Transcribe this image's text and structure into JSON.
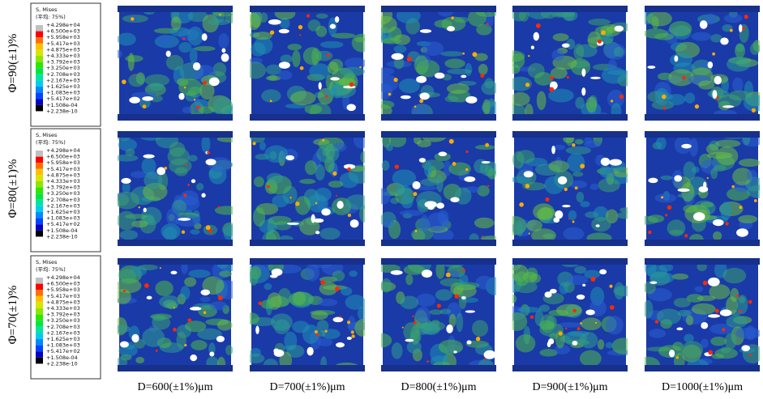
{
  "rows": [
    {
      "label": "Φ=90(±1)%",
      "legend": {
        "title": "S, Mises",
        "subtitle": "(平均: 75%)",
        "values": [
          "+4.298e+04",
          "+6.500e+03",
          "+5.958e+03",
          "+5.417e+03",
          "+4.875e+03",
          "+4.333e+03",
          "+3.792e+03",
          "+3.250e+03",
          "+2.708e+03",
          "+2.167e+03",
          "+1.625e+03",
          "+1.083e+03",
          "+5.417e+02",
          "+1.508e-04",
          "+2.238e-10"
        ]
      }
    },
    {
      "label": "Φ=80(±1)%",
      "legend": {
        "title": "S, Mises",
        "subtitle": "(平均: 75%)",
        "values": [
          "+4.298e+04",
          "+6.500e+03",
          "+5.958e+03",
          "+5.417e+03",
          "+4.875e+03",
          "+4.333e+03",
          "+3.792e+03",
          "+3.250e+03",
          "+2.708e+03",
          "+2.167e+03",
          "+1.625e+03",
          "+1.083e+03",
          "+5.417e+02",
          "+1.508e-04",
          "+2.238e-10"
        ]
      }
    },
    {
      "label": "Φ=70(±1)%",
      "legend": {
        "title": "S, Mises",
        "subtitle": "(平均: 75%)",
        "values": [
          "+4.298e+04",
          "+6.500e+03",
          "+5.958e+03",
          "+5.417e+03",
          "+4.875e+03",
          "+4.333e+03",
          "+3.792e+03",
          "+3.250e+03",
          "+2.708e+03",
          "+2.167e+03",
          "+1.625e+03",
          "+1.083e+03",
          "+5.417e+02",
          "+1.508e-04",
          "+2.238e-10"
        ]
      }
    }
  ],
  "columns": [
    "D=600(±1%)μm",
    "D=700(±1%)μm",
    "D=800(±1%)μm",
    "D=900(±1%)μm",
    "D=1000(±1%)μm"
  ]
}
